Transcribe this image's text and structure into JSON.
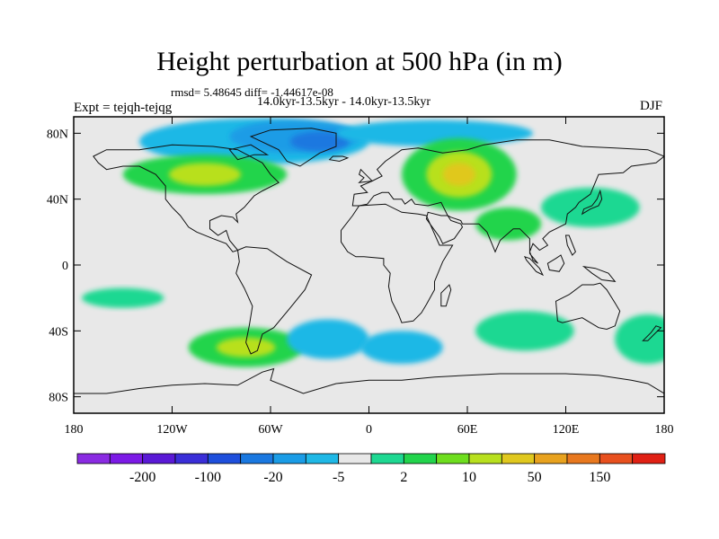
{
  "chart_data": {
    "type": "heatmap",
    "title": "Height perturbation at 500 hPa (in m)",
    "subtitle_stats": "rmsd= 5.48645 diff= -1.44617e-08",
    "left_label": "Expt = tejqh-tejqg",
    "center_label": "14.0kyr-13.5kyr - 14.0kyr-13.5kyr",
    "right_label": "DJF",
    "projection": "cylindrical equidistant (global map)",
    "xlim": [
      -180,
      180
    ],
    "ylim": [
      -90,
      90
    ],
    "x_ticks": [
      {
        "value": -180,
        "label": "180"
      },
      {
        "value": -120,
        "label": "120W"
      },
      {
        "value": -60,
        "label": "60W"
      },
      {
        "value": 0,
        "label": "0"
      },
      {
        "value": 60,
        "label": "60E"
      },
      {
        "value": 120,
        "label": "120E"
      },
      {
        "value": 180,
        "label": "180"
      }
    ],
    "y_ticks": [
      {
        "value": 80,
        "label": "80N"
      },
      {
        "value": 40,
        "label": "40N"
      },
      {
        "value": 0,
        "label": "0"
      },
      {
        "value": -40,
        "label": "40S"
      },
      {
        "value": -80,
        "label": "80S"
      }
    ],
    "colorbar": {
      "colors": [
        "#8a2be2",
        "#7c1ae6",
        "#5a19d6",
        "#3a2ed8",
        "#1e4fdc",
        "#1a78e0",
        "#1a9ce6",
        "#1fb8e6",
        "#e8e8e8",
        "#1ed892",
        "#22d44c",
        "#6ede1e",
        "#b8e01e",
        "#e0c81e",
        "#e8a21e",
        "#e8781e",
        "#e8501e",
        "#e02014"
      ],
      "labels": [
        {
          "after_index": 1,
          "label": "-200"
        },
        {
          "after_index": 3,
          "label": "-100"
        },
        {
          "after_index": 5,
          "label": "-20"
        },
        {
          "after_index": 7,
          "label": "-5"
        },
        {
          "after_index": 9,
          "label": "2"
        },
        {
          "after_index": 11,
          "label": "10"
        },
        {
          "after_index": 13,
          "label": "50"
        },
        {
          "after_index": 15,
          "label": "150"
        }
      ]
    },
    "anomaly_regions": [
      {
        "name": "arctic-canada-greenland-low",
        "lon": -70,
        "lat": 75,
        "rlon": 70,
        "rlat": 14,
        "level": -10,
        "color": "#1fb8e6"
      },
      {
        "name": "greenland-core-low",
        "lon": -45,
        "lat": 78,
        "rlon": 40,
        "rlat": 10,
        "level": -20,
        "color": "#1a9ce6"
      },
      {
        "name": "greenland-deep-low",
        "lon": -30,
        "lat": 75,
        "rlon": 18,
        "rlat": 6,
        "level": -40,
        "color": "#1a78e0"
      },
      {
        "name": "siberia-low",
        "lon": 40,
        "lat": 80,
        "rlon": 60,
        "rlat": 8,
        "level": -10,
        "color": "#1fb8e6"
      },
      {
        "name": "north-pacific-high",
        "lon": -100,
        "lat": 55,
        "rlon": 50,
        "rlat": 12,
        "level": 10,
        "color": "#22d44c"
      },
      {
        "name": "north-pacific-core",
        "lon": -100,
        "lat": 55,
        "rlon": 22,
        "rlat": 7,
        "level": 30,
        "color": "#b8e01e"
      },
      {
        "name": "eurasia-high",
        "lon": 55,
        "lat": 55,
        "rlon": 35,
        "rlat": 22,
        "level": 10,
        "color": "#22d44c"
      },
      {
        "name": "eurasia-core-high",
        "lon": 55,
        "lat": 55,
        "rlon": 20,
        "rlat": 14,
        "level": 30,
        "color": "#b8e01e"
      },
      {
        "name": "eurasia-max",
        "lon": 55,
        "lat": 55,
        "rlon": 10,
        "rlat": 7,
        "level": 50,
        "color": "#e0c81e"
      },
      {
        "name": "east-asia-high",
        "lon": 135,
        "lat": 35,
        "rlon": 30,
        "rlat": 12,
        "level": 5,
        "color": "#1ed892"
      },
      {
        "name": "south-asia-high",
        "lon": 85,
        "lat": 25,
        "rlon": 20,
        "rlat": 10,
        "level": 10,
        "color": "#22d44c"
      },
      {
        "name": "south-pacific-high",
        "lon": -75,
        "lat": -50,
        "rlon": 35,
        "rlat": 12,
        "level": 10,
        "color": "#22d44c"
      },
      {
        "name": "south-pacific-core",
        "lon": -75,
        "lat": -50,
        "rlon": 18,
        "rlat": 6,
        "level": 30,
        "color": "#b8e01e"
      },
      {
        "name": "south-atlantic-low",
        "lon": -25,
        "lat": -45,
        "rlon": 25,
        "rlat": 12,
        "level": -5,
        "color": "#1fb8e6"
      },
      {
        "name": "south-indian-low",
        "lon": 20,
        "lat": -50,
        "rlon": 25,
        "rlat": 10,
        "level": -5,
        "color": "#1fb8e6"
      },
      {
        "name": "south-indian-high",
        "lon": 95,
        "lat": -40,
        "rlon": 30,
        "rlat": 12,
        "level": 5,
        "color": "#1ed892"
      },
      {
        "name": "southern-ocean-high",
        "lon": 170,
        "lat": -45,
        "rlon": 20,
        "rlat": 15,
        "level": 5,
        "color": "#1ed892"
      },
      {
        "name": "tropical-pacific-high",
        "lon": -150,
        "lat": -20,
        "rlon": 25,
        "rlat": 6,
        "level": 5,
        "color": "#1ed892"
      }
    ]
  }
}
